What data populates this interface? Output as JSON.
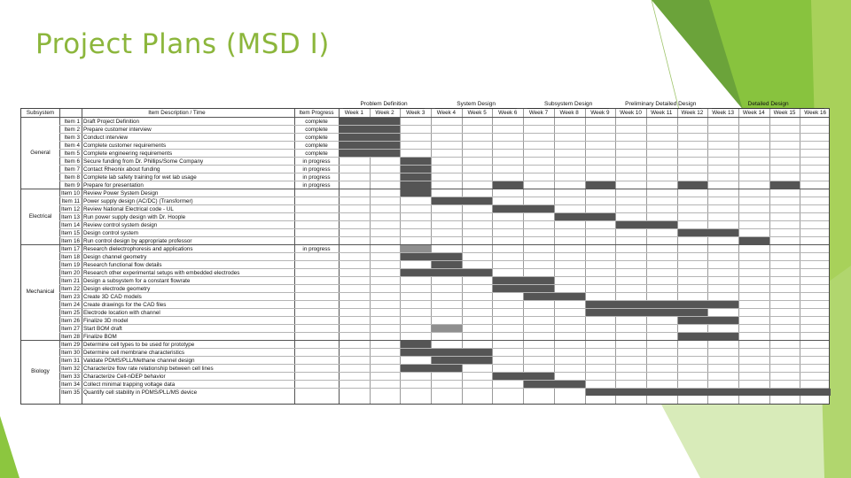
{
  "title": "Project Plans (MSD I)",
  "colors": {
    "accent_green": "#8cb63c",
    "bar_fill": "#555555",
    "bar_light": "#8f8f8f"
  },
  "phases": [
    {
      "label": "Problem Definition",
      "start_week": 1,
      "end_week": 3
    },
    {
      "label": "System Design",
      "start_week": 4,
      "end_week": 6
    },
    {
      "label": "Subsystem Design",
      "start_week": 7,
      "end_week": 9
    },
    {
      "label": "Preliminary Detailed Design",
      "start_week": 10,
      "end_week": 12
    },
    {
      "label": "Detailed Design",
      "start_week": 13,
      "end_week": 16
    }
  ],
  "headers": {
    "subsystem": "Subsystem",
    "item_description": "Item Description / Time",
    "item_progress": "Item Progress",
    "weeks": [
      "Week 1",
      "Week 2",
      "Week 3",
      "Week 4",
      "Week 5",
      "Week 6",
      "Week 7",
      "Week 8",
      "Week 9",
      "Week 10",
      "Week 11",
      "Week 12",
      "Week 13",
      "Week 14",
      "Week 15",
      "Week 16"
    ]
  },
  "subsystems": [
    {
      "name": "General",
      "first_row": 0,
      "last_row": 8
    },
    {
      "name": "Electrical",
      "first_row": 9,
      "last_row": 15
    },
    {
      "name": "Mechanical",
      "first_row": 16,
      "last_row": 27
    },
    {
      "name": "Biology",
      "first_row": 28,
      "last_row": 35
    }
  ],
  "rows": [
    {
      "id": "Item 1",
      "desc": "Draft Project Definition",
      "progress": "complete",
      "bars": [
        [
          1,
          2
        ]
      ]
    },
    {
      "id": "Item 2",
      "desc": "Prepare customer interview",
      "progress": "complete",
      "bars": [
        [
          1,
          2
        ]
      ]
    },
    {
      "id": "Item 3",
      "desc": "Conduct interview",
      "progress": "complete",
      "bars": [
        [
          1,
          2
        ]
      ]
    },
    {
      "id": "Item 4",
      "desc": "Complete customer requirements",
      "progress": "complete",
      "bars": [
        [
          1,
          2
        ]
      ]
    },
    {
      "id": "Item 5",
      "desc": "Complete engineering requirements",
      "progress": "complete",
      "bars": [
        [
          1,
          2
        ]
      ]
    },
    {
      "id": "Item 6",
      "desc": "Secure funding from Dr. Phillips/Some Company",
      "progress": "in progress",
      "bars": [
        [
          3,
          3
        ]
      ]
    },
    {
      "id": "Item 7",
      "desc": "Contact Rheonix about funding",
      "progress": "in progress",
      "bars": [
        [
          3,
          3
        ]
      ]
    },
    {
      "id": "Item 8",
      "desc": "Complete lab safety training for wet lab usage",
      "progress": "in progress",
      "bars": [
        [
          3,
          3
        ]
      ]
    },
    {
      "id": "Item 9",
      "desc": "Prepare for presentation",
      "progress": "in progress",
      "bars": [
        [
          3,
          3
        ],
        [
          6,
          6
        ],
        [
          9,
          9
        ],
        [
          12,
          12
        ],
        [
          15,
          15
        ]
      ]
    },
    {
      "id": "Item 10",
      "desc": "Review Power System Design",
      "progress": "",
      "bars": [
        [
          3,
          3
        ]
      ]
    },
    {
      "id": "Item 11",
      "desc": "Power supply design (AC/DC) (Transformer)",
      "progress": "",
      "bars": [
        [
          4,
          5
        ]
      ]
    },
    {
      "id": "Item 12",
      "desc": "Review National Electrical code - UL",
      "progress": "",
      "bars": [
        [
          6,
          7
        ]
      ]
    },
    {
      "id": "Item 13",
      "desc": "Run power supply design with Dr. Hoople",
      "progress": "",
      "bars": [
        [
          8,
          9
        ]
      ]
    },
    {
      "id": "Item 14",
      "desc": "Review control system design",
      "progress": "",
      "bars": [
        [
          10,
          11
        ]
      ]
    },
    {
      "id": "Item 15",
      "desc": "Design control system",
      "progress": "",
      "bars": [
        [
          12,
          13
        ]
      ]
    },
    {
      "id": "Item 16",
      "desc": "Run control design by appropriate professor",
      "progress": "",
      "bars": [
        [
          14,
          14
        ]
      ]
    },
    {
      "id": "Item 17",
      "desc": "Research dielectrophoresis and applications",
      "progress": "in progress",
      "bars": [
        [
          3,
          3
        ]
      ],
      "light": true
    },
    {
      "id": "Item 18",
      "desc": "Design channel geometry",
      "progress": "",
      "bars": [
        [
          3,
          4
        ]
      ]
    },
    {
      "id": "Item 19",
      "desc": "Research functional flow details",
      "progress": "",
      "bars": [
        [
          4,
          4
        ]
      ]
    },
    {
      "id": "Item 20",
      "desc": "Research other experimental setups with embedded electrodes",
      "progress": "",
      "bars": [
        [
          3,
          5
        ]
      ]
    },
    {
      "id": "Item 21",
      "desc": "Design a subsystem for a constant flowrate",
      "progress": "",
      "bars": [
        [
          6,
          7
        ]
      ]
    },
    {
      "id": "Item 22",
      "desc": "Design electrode geometry",
      "progress": "",
      "bars": [
        [
          6,
          7
        ]
      ]
    },
    {
      "id": "Item 23",
      "desc": "Create 3D CAD models",
      "progress": "",
      "bars": [
        [
          7,
          8
        ]
      ]
    },
    {
      "id": "Item 24",
      "desc": "Create drawings for the CAD files",
      "progress": "",
      "bars": [
        [
          9,
          13
        ]
      ]
    },
    {
      "id": "Item 25",
      "desc": "Electrode location with channel",
      "progress": "",
      "bars": [
        [
          9,
          12
        ]
      ]
    },
    {
      "id": "Item 26",
      "desc": "Finalize 3D model",
      "progress": "",
      "bars": [
        [
          12,
          13
        ]
      ]
    },
    {
      "id": "Item 27",
      "desc": "Start BOM draft",
      "progress": "",
      "bars": [
        [
          4,
          4
        ]
      ],
      "light": true
    },
    {
      "id": "Item 28",
      "desc": "Finalize BOM",
      "progress": "",
      "bars": [
        [
          12,
          13
        ]
      ]
    },
    {
      "id": "Item 29",
      "desc": "Determine cell types to be used for prototype",
      "progress": "",
      "bars": [
        [
          3,
          3
        ]
      ]
    },
    {
      "id": "Item 30",
      "desc": "Determine cell membrane characteristics",
      "progress": "",
      "bars": [
        [
          3,
          5
        ]
      ]
    },
    {
      "id": "Item 31",
      "desc": "Validate PDMS/PLL/Methane channel design",
      "progress": "",
      "bars": [
        [
          4,
          5
        ]
      ]
    },
    {
      "id": "Item 32",
      "desc": "Characterize flow rate relationship between cell lines",
      "progress": "",
      "bars": [
        [
          3,
          4
        ]
      ]
    },
    {
      "id": "Item 33",
      "desc": "Characterize Cell-nDEP behavior",
      "progress": "",
      "bars": [
        [
          6,
          7
        ]
      ]
    },
    {
      "id": "Item 34",
      "desc": "Collect minimal trapping voltage data",
      "progress": "",
      "bars": [
        [
          7,
          8
        ]
      ]
    },
    {
      "id": "Item 35",
      "desc": "Quantify cell stability in PDMS/PLL/MS device",
      "progress": "",
      "bars": [
        [
          9,
          16
        ]
      ]
    }
  ]
}
